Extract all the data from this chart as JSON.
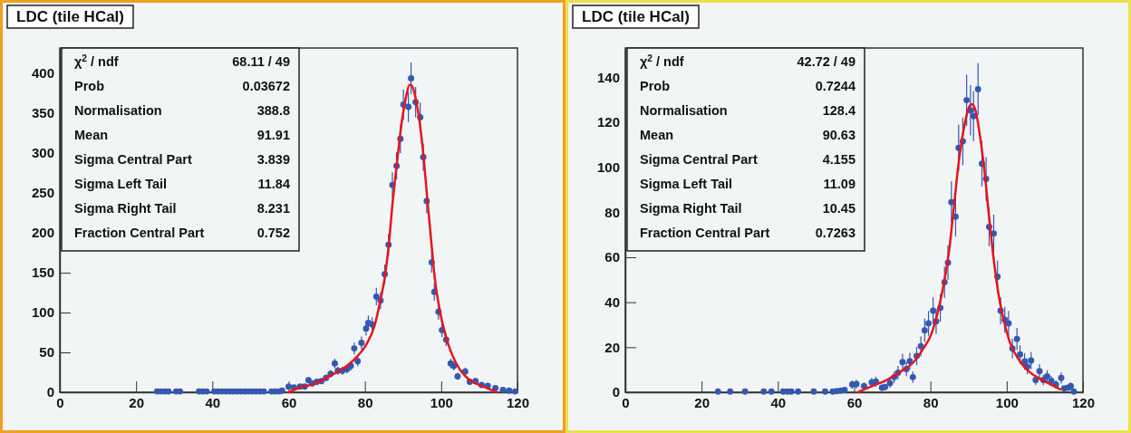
{
  "chart_data": [
    {
      "type": "scatter",
      "title": "LDC (tile HCal)",
      "xlim": [
        0,
        120
      ],
      "ylim": [
        0,
        432
      ],
      "xticks": [
        0,
        20,
        40,
        60,
        80,
        100,
        120
      ],
      "yticks": [
        0,
        50,
        100,
        150,
        200,
        250,
        300,
        350,
        400
      ],
      "marker": "circle",
      "grid": false,
      "annotations": [
        "χ$^{2}$ / ndf",
        "68.11 / 49",
        "Prob",
        "0.03672",
        "Normalisation",
        "388.8",
        "Mean",
        "91.91",
        "Sigma Central Part",
        "3.839",
        "Sigma Left Tail",
        "11.84",
        "Sigma Right Tail",
        "8.231",
        "Fraction Central Part",
        "0.752"
      ],
      "series": [
        {
          "color": "#3558b0",
          "x": [
            25.5,
            26.5,
            27.5,
            28.5,
            30.5,
            31.5,
            36.5,
            37.5,
            38.5,
            40.5,
            41.5,
            42.5,
            43.5,
            44.5,
            45.5,
            46.5,
            47.5,
            48.5,
            49.5,
            50.5,
            51.5,
            52.5,
            53.5,
            55.5,
            56.5,
            57.5,
            58.3,
            60,
            61.4,
            63,
            64.2,
            65.2,
            66.2,
            67.4,
            68.6,
            69.8,
            71,
            72.1,
            72.9,
            74.1,
            75.3,
            76.3,
            77.2,
            78.1,
            79.1,
            80.3,
            80.9,
            81.9,
            83,
            84.1,
            85.2,
            86.2,
            87.2,
            88.3,
            89.3,
            90.1,
            91.4,
            92.1,
            93.3,
            94.5,
            95.3,
            96.2,
            97.5,
            98.2,
            99.3,
            100.2,
            101.3,
            102.5,
            103.3,
            104.3,
            106.3,
            107.5,
            109,
            110.6,
            112.2,
            114.2,
            116.2,
            117.8,
            119.4
          ],
          "values": [
            1,
            1,
            1,
            1,
            1,
            1,
            1,
            1,
            1,
            1,
            1,
            1,
            1,
            1,
            1,
            1,
            1,
            1,
            1,
            1,
            1,
            1,
            1,
            1,
            1,
            1,
            2,
            7,
            6,
            7,
            7,
            15,
            11,
            13,
            14,
            18,
            23,
            36,
            27,
            27,
            29,
            33,
            55,
            39,
            62,
            80,
            87,
            85,
            120,
            115,
            148,
            185,
            260,
            284,
            318,
            361,
            358,
            394,
            364,
            345,
            295,
            240,
            163,
            126,
            101,
            78,
            66,
            36,
            33,
            20,
            26,
            13,
            14,
            9,
            8,
            5,
            3,
            2,
            1
          ],
          "errors": [
            1,
            1,
            1,
            1,
            1,
            1,
            1,
            1,
            1,
            1,
            1,
            1,
            1,
            1,
            1,
            1,
            1,
            1,
            1,
            1,
            1,
            1,
            1,
            1,
            1,
            1,
            1.4,
            2.6,
            2.4,
            2.6,
            2.6,
            3.9,
            3.3,
            3.5,
            3.7,
            4.2,
            4.8,
            6,
            5.1,
            5.2,
            5.4,
            5.7,
            7.4,
            6.2,
            7.9,
            8.9,
            9.3,
            9.2,
            11,
            10.7,
            12.2,
            13.6,
            16.1,
            16.9,
            17.8,
            19,
            18.9,
            19.8,
            19.1,
            18.6,
            17.2,
            15.5,
            12.8,
            11.2,
            10,
            8.8,
            8.1,
            6,
            5.7,
            4.5,
            5.1,
            3.5,
            3.7,
            3,
            2.8,
            2.2,
            1.7,
            1.4,
            1
          ]
        },
        {
          "type": "line",
          "color": "#e8141c",
          "line_style": "solid",
          "marker": "none",
          "x": [
            60,
            63,
            67,
            71,
            75,
            78,
            80.5,
            82.5,
            84,
            85.2,
            86.2,
            87.2,
            88.4,
            89.6,
            90.8,
            91.7,
            92.4,
            93.2,
            94.4,
            95.4,
            96.3,
            97.4,
            98.3,
            99.5,
            101.1,
            102.7,
            104.7,
            107.5,
            110.6,
            114.6
          ],
          "values": [
            0,
            6,
            11,
            21,
            32,
            45,
            61,
            83,
            114,
            144,
            182,
            235,
            288,
            337,
            371,
            386,
            384,
            371,
            337,
            295,
            246,
            189,
            144,
            106,
            72,
            49,
            30,
            15,
            8,
            0
          ]
        }
      ]
    },
    {
      "type": "scatter",
      "title": "LDC (tile HCal)",
      "xlim": [
        0,
        120
      ],
      "ylim": [
        0,
        153
      ],
      "xticks": [
        0,
        20,
        40,
        60,
        80,
        100,
        120
      ],
      "yticks": [
        0,
        20,
        40,
        60,
        80,
        100,
        120,
        140
      ],
      "marker": "circle",
      "grid": false,
      "annotations": [
        "χ$^{2}$ / ndf",
        "42.72 / 49",
        "Prob",
        "0.7244",
        "Normalisation",
        "128.4",
        "Mean",
        "90.63",
        "Sigma Central Part",
        "4.155",
        "Sigma Left Tail",
        "11.09",
        "Sigma Right Tail",
        "10.45",
        "Fraction Central Part",
        "0.7263"
      ],
      "series": [
        {
          "color": "#3558b0",
          "x": [
            24.3,
            27.5,
            31.4,
            36.3,
            38.3,
            41.4,
            42.5,
            43.5,
            45.3,
            49.4,
            52.4,
            54.4,
            55.5,
            56.5,
            57.5,
            59.5,
            60.6,
            62.6,
            64.6,
            65.7,
            67.3,
            68.1,
            69.4,
            70.5,
            71.5,
            72.7,
            73.7,
            74.6,
            75.4,
            76.4,
            77.5,
            78.5,
            79.5,
            80.7,
            81.5,
            82.6,
            83.7,
            84.6,
            85.5,
            86.6,
            87.4,
            88.5,
            89.5,
            90.5,
            91.3,
            92.5,
            93.5,
            94.6,
            95.4,
            96.6,
            97.6,
            98.4,
            99.5,
            100.5,
            101.5,
            102.7,
            103.5,
            104.7,
            105.4,
            106.4,
            107.6,
            108.6,
            109.6,
            110.6,
            111.7,
            112.9,
            114.3,
            115.1,
            116.1,
            116.8,
            117.6
          ],
          "values": [
            0.3,
            0.3,
            0.3,
            0.3,
            0.3,
            0.3,
            0.3,
            0.3,
            0.3,
            0.3,
            0.3,
            0.3,
            0.5,
            0.7,
            1,
            3.4,
            3.6,
            2.7,
            4.3,
            4.7,
            2,
            2.3,
            4,
            6.7,
            8.7,
            13.4,
            10.3,
            13.8,
            6.7,
            16.1,
            20.4,
            27.5,
            30.6,
            36.2,
            31.5,
            37.5,
            48.9,
            57.6,
            84.5,
            78,
            108.6,
            111.5,
            129.8,
            125.3,
            122.7,
            134.7,
            101.6,
            94.8,
            73.5,
            70.6,
            51.3,
            36.2,
            32.2,
            30.6,
            19.4,
            23.7,
            16.8,
            13.7,
            11.4,
            14.1,
            5.4,
            9.4,
            5.4,
            7.1,
            5,
            3.4,
            6.3,
            1.7,
            2,
            2.7,
            0.3
          ],
          "errors": [
            0.6,
            0.6,
            0.6,
            0.6,
            0.6,
            0.6,
            0.6,
            0.6,
            0.6,
            0.6,
            0.6,
            0.6,
            0.7,
            0.8,
            1,
            1.8,
            1.9,
            1.6,
            2.1,
            2.2,
            1.4,
            1.5,
            2,
            2.6,
            3,
            3.7,
            3.2,
            3.7,
            2.6,
            4,
            4.5,
            5.2,
            5.5,
            6,
            5.6,
            6.1,
            7,
            7.6,
            9.2,
            8.8,
            10.4,
            10.6,
            11.4,
            11.2,
            11.1,
            11.6,
            10.1,
            9.7,
            8.6,
            8.4,
            7.2,
            6,
            5.7,
            5.5,
            4.4,
            4.9,
            4.1,
            3.7,
            3.4,
            3.8,
            2.3,
            3.1,
            2.3,
            2.7,
            2.2,
            1.8,
            2.5,
            null,
            null,
            1.6,
            0.6
          ]
        },
        {
          "type": "line",
          "color": "#e8141c",
          "line_style": "solid",
          "marker": "none",
          "x": [
            61,
            64.6,
            68.5,
            72.4,
            75.6,
            77.9,
            80.3,
            82.2,
            83.8,
            85,
            86.2,
            87.4,
            89,
            90.1,
            90.9,
            91.9,
            93,
            94.2,
            95.4,
            96.6,
            97.8,
            99.2,
            100.7,
            103.1,
            106.2,
            109.4,
            114.1
          ],
          "values": [
            0,
            2.7,
            5.4,
            9.4,
            13.4,
            18.8,
            26.1,
            37.5,
            50.9,
            64.3,
            83.1,
            101.9,
            119.3,
            126.7,
            128,
            124.7,
            113.9,
            97.9,
            77.7,
            59,
            44.2,
            32.2,
            22.8,
            14.7,
            8.7,
            5.4,
            1.3
          ]
        }
      ]
    }
  ]
}
